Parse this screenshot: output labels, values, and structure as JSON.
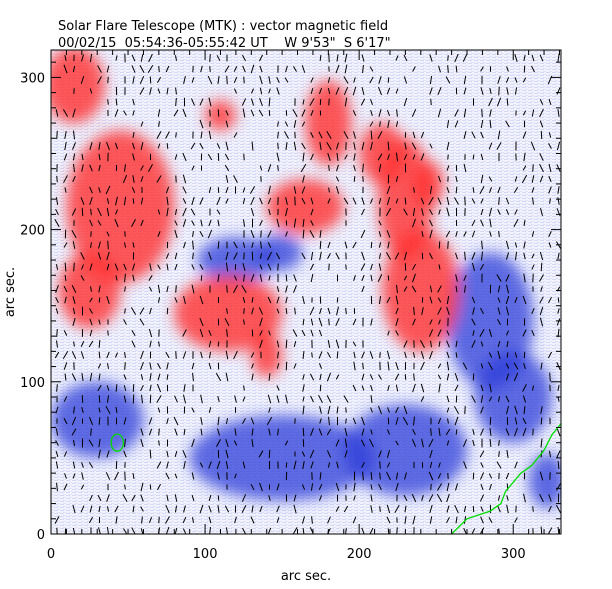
{
  "chart_data": {
    "type": "heatmap",
    "title": "Solar Flare Telescope (MTK) : vector magnetic field",
    "subtitle": "00/02/15  05:54:36-05:55:42 UT    W 9'53\"  S 6'17\"",
    "xlabel": "arc sec.",
    "ylabel": "arc sec.",
    "xlim": [
      0,
      331
    ],
    "ylim": [
      0,
      318
    ],
    "xticks": [
      0,
      100,
      200,
      300
    ],
    "yticks": [
      0,
      100,
      200,
      300
    ],
    "colors": {
      "positive": "#ff3030",
      "negative": "#2e3cd8",
      "background": "#e6e8fa",
      "contour": "#00dd00",
      "vectors": "#000000"
    },
    "positive_regions": [
      [
        15,
        295,
        20,
        25
      ],
      [
        45,
        215,
        35,
        50
      ],
      [
        25,
        160,
        20,
        25
      ],
      [
        115,
        145,
        35,
        25
      ],
      [
        140,
        118,
        10,
        15
      ],
      [
        180,
        270,
        15,
        28
      ],
      [
        165,
        215,
        25,
        18
      ],
      [
        230,
        220,
        18,
        40
      ],
      [
        240,
        160,
        25,
        40
      ],
      [
        215,
        250,
        15,
        20
      ],
      [
        110,
        275,
        10,
        10
      ],
      [
        245,
        230,
        10,
        15
      ]
    ],
    "negative_regions": [
      [
        120,
        180,
        25,
        15
      ],
      [
        148,
        185,
        15,
        12
      ],
      [
        285,
        140,
        28,
        45
      ],
      [
        30,
        75,
        30,
        25
      ],
      [
        150,
        50,
        60,
        28
      ],
      [
        322,
        35,
        12,
        18
      ],
      [
        230,
        55,
        40,
        30
      ],
      [
        300,
        90,
        25,
        30
      ]
    ],
    "contour": [
      [
        260,
        0
      ],
      [
        270,
        10
      ],
      [
        285,
        15
      ],
      [
        292,
        20
      ],
      [
        295,
        28
      ],
      [
        305,
        40
      ],
      [
        312,
        45
      ],
      [
        320,
        55
      ],
      [
        325,
        65
      ],
      [
        333,
        75
      ]
    ],
    "contour_circle": [
      43,
      60,
      4
    ]
  }
}
